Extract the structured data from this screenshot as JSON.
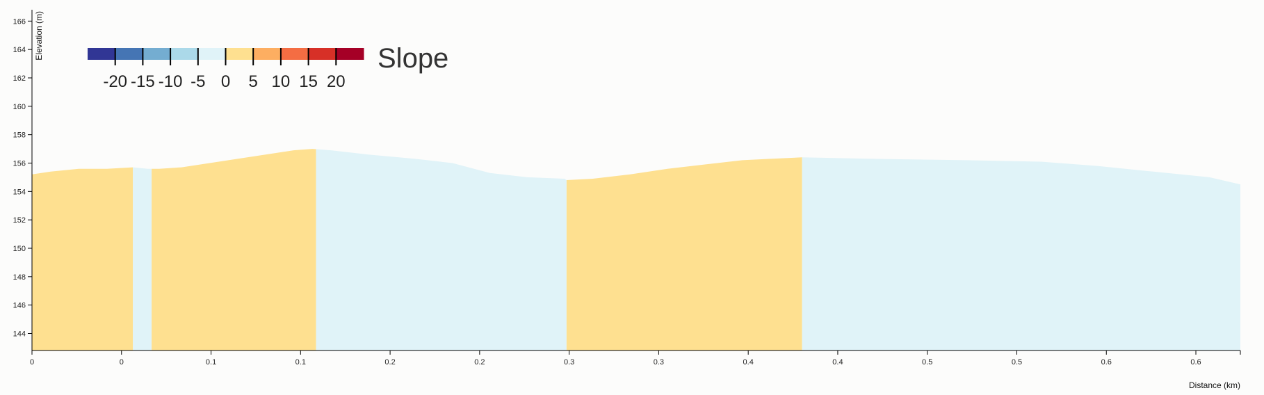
{
  "chart_data": {
    "type": "area",
    "xlabel": "Distance (km)",
    "ylabel": "Elevation (m)",
    "xlim": [
      0,
      0.6465
    ],
    "ylim": [
      142.8,
      166.8
    ],
    "y_ticks": [
      144,
      146,
      148,
      150,
      152,
      154,
      156,
      158,
      160,
      162,
      164,
      166
    ],
    "x_ticks": [
      {
        "x": 0.0,
        "label": "0"
      },
      {
        "x": 0.0479,
        "label": "0"
      },
      {
        "x": 0.0958,
        "label": "0.1"
      },
      {
        "x": 0.1437,
        "label": "0.1"
      },
      {
        "x": 0.1916,
        "label": "0.2"
      },
      {
        "x": 0.2395,
        "label": "0.2"
      },
      {
        "x": 0.2874,
        "label": "0.3"
      },
      {
        "x": 0.3353,
        "label": "0.3"
      },
      {
        "x": 0.3832,
        "label": "0.4"
      },
      {
        "x": 0.4311,
        "label": "0.4"
      },
      {
        "x": 0.479,
        "label": "0.5"
      },
      {
        "x": 0.5269,
        "label": "0.5"
      },
      {
        "x": 0.5748,
        "label": "0.6"
      },
      {
        "x": 0.6227,
        "label": "0.6"
      }
    ],
    "profile": [
      {
        "x": 0.0,
        "y": 155.2
      },
      {
        "x": 0.01,
        "y": 155.4
      },
      {
        "x": 0.025,
        "y": 155.6
      },
      {
        "x": 0.04,
        "y": 155.6
      },
      {
        "x": 0.054,
        "y": 155.7
      },
      {
        "x": 0.062,
        "y": 155.6
      },
      {
        "x": 0.068,
        "y": 155.6
      },
      {
        "x": 0.08,
        "y": 155.7
      },
      {
        "x": 0.095,
        "y": 156.0
      },
      {
        "x": 0.11,
        "y": 156.3
      },
      {
        "x": 0.125,
        "y": 156.6
      },
      {
        "x": 0.14,
        "y": 156.9
      },
      {
        "x": 0.15,
        "y": 157.0
      },
      {
        "x": 0.16,
        "y": 156.9
      },
      {
        "x": 0.18,
        "y": 156.6
      },
      {
        "x": 0.205,
        "y": 156.3
      },
      {
        "x": 0.225,
        "y": 156.0
      },
      {
        "x": 0.245,
        "y": 155.3
      },
      {
        "x": 0.265,
        "y": 155.0
      },
      {
        "x": 0.285,
        "y": 154.9
      },
      {
        "x": 0.286,
        "y": 154.8
      },
      {
        "x": 0.3,
        "y": 154.9
      },
      {
        "x": 0.32,
        "y": 155.2
      },
      {
        "x": 0.34,
        "y": 155.6
      },
      {
        "x": 0.36,
        "y": 155.9
      },
      {
        "x": 0.38,
        "y": 156.2
      },
      {
        "x": 0.395,
        "y": 156.3
      },
      {
        "x": 0.412,
        "y": 156.4
      },
      {
        "x": 0.45,
        "y": 156.3
      },
      {
        "x": 0.5,
        "y": 156.2
      },
      {
        "x": 0.54,
        "y": 156.1
      },
      {
        "x": 0.57,
        "y": 155.8
      },
      {
        "x": 0.6,
        "y": 155.4
      },
      {
        "x": 0.63,
        "y": 155.0
      },
      {
        "x": 0.6465,
        "y": 154.5
      }
    ],
    "segments": [
      {
        "x0": 0.0,
        "x1": 0.054,
        "slope_class": "0 to 5"
      },
      {
        "x0": 0.054,
        "x1": 0.064,
        "slope_class": "-5 to 0"
      },
      {
        "x0": 0.064,
        "x1": 0.152,
        "slope_class": "0 to 5"
      },
      {
        "x0": 0.152,
        "x1": 0.286,
        "slope_class": "-5 to 0"
      },
      {
        "x0": 0.286,
        "x1": 0.412,
        "slope_class": "0 to 5"
      },
      {
        "x0": 0.412,
        "x1": 0.6465,
        "slope_class": "-5 to 0"
      }
    ],
    "legend": {
      "title": "Slope",
      "placement": "top-left",
      "tick_labels": [
        "-20",
        "-15",
        "-10",
        "-5",
        "0",
        "5",
        "10",
        "15",
        "20"
      ],
      "bins": [
        {
          "class": "< -20",
          "color": "#313695"
        },
        {
          "class": "-20 to -15",
          "color": "#4575b4"
        },
        {
          "class": "-15 to -10",
          "color": "#74add1"
        },
        {
          "class": "-10 to -5",
          "color": "#abd9e9"
        },
        {
          "class": "-5 to 0",
          "color": "#e0f3f8"
        },
        {
          "class": "0 to 5",
          "color": "#fee090"
        },
        {
          "class": "5 to 10",
          "color": "#fdae61"
        },
        {
          "class": "10 to 15",
          "color": "#f46d43"
        },
        {
          "class": "15 to 20",
          "color": "#d73027"
        },
        {
          "class": "> 20",
          "color": "#a50026"
        }
      ]
    }
  }
}
